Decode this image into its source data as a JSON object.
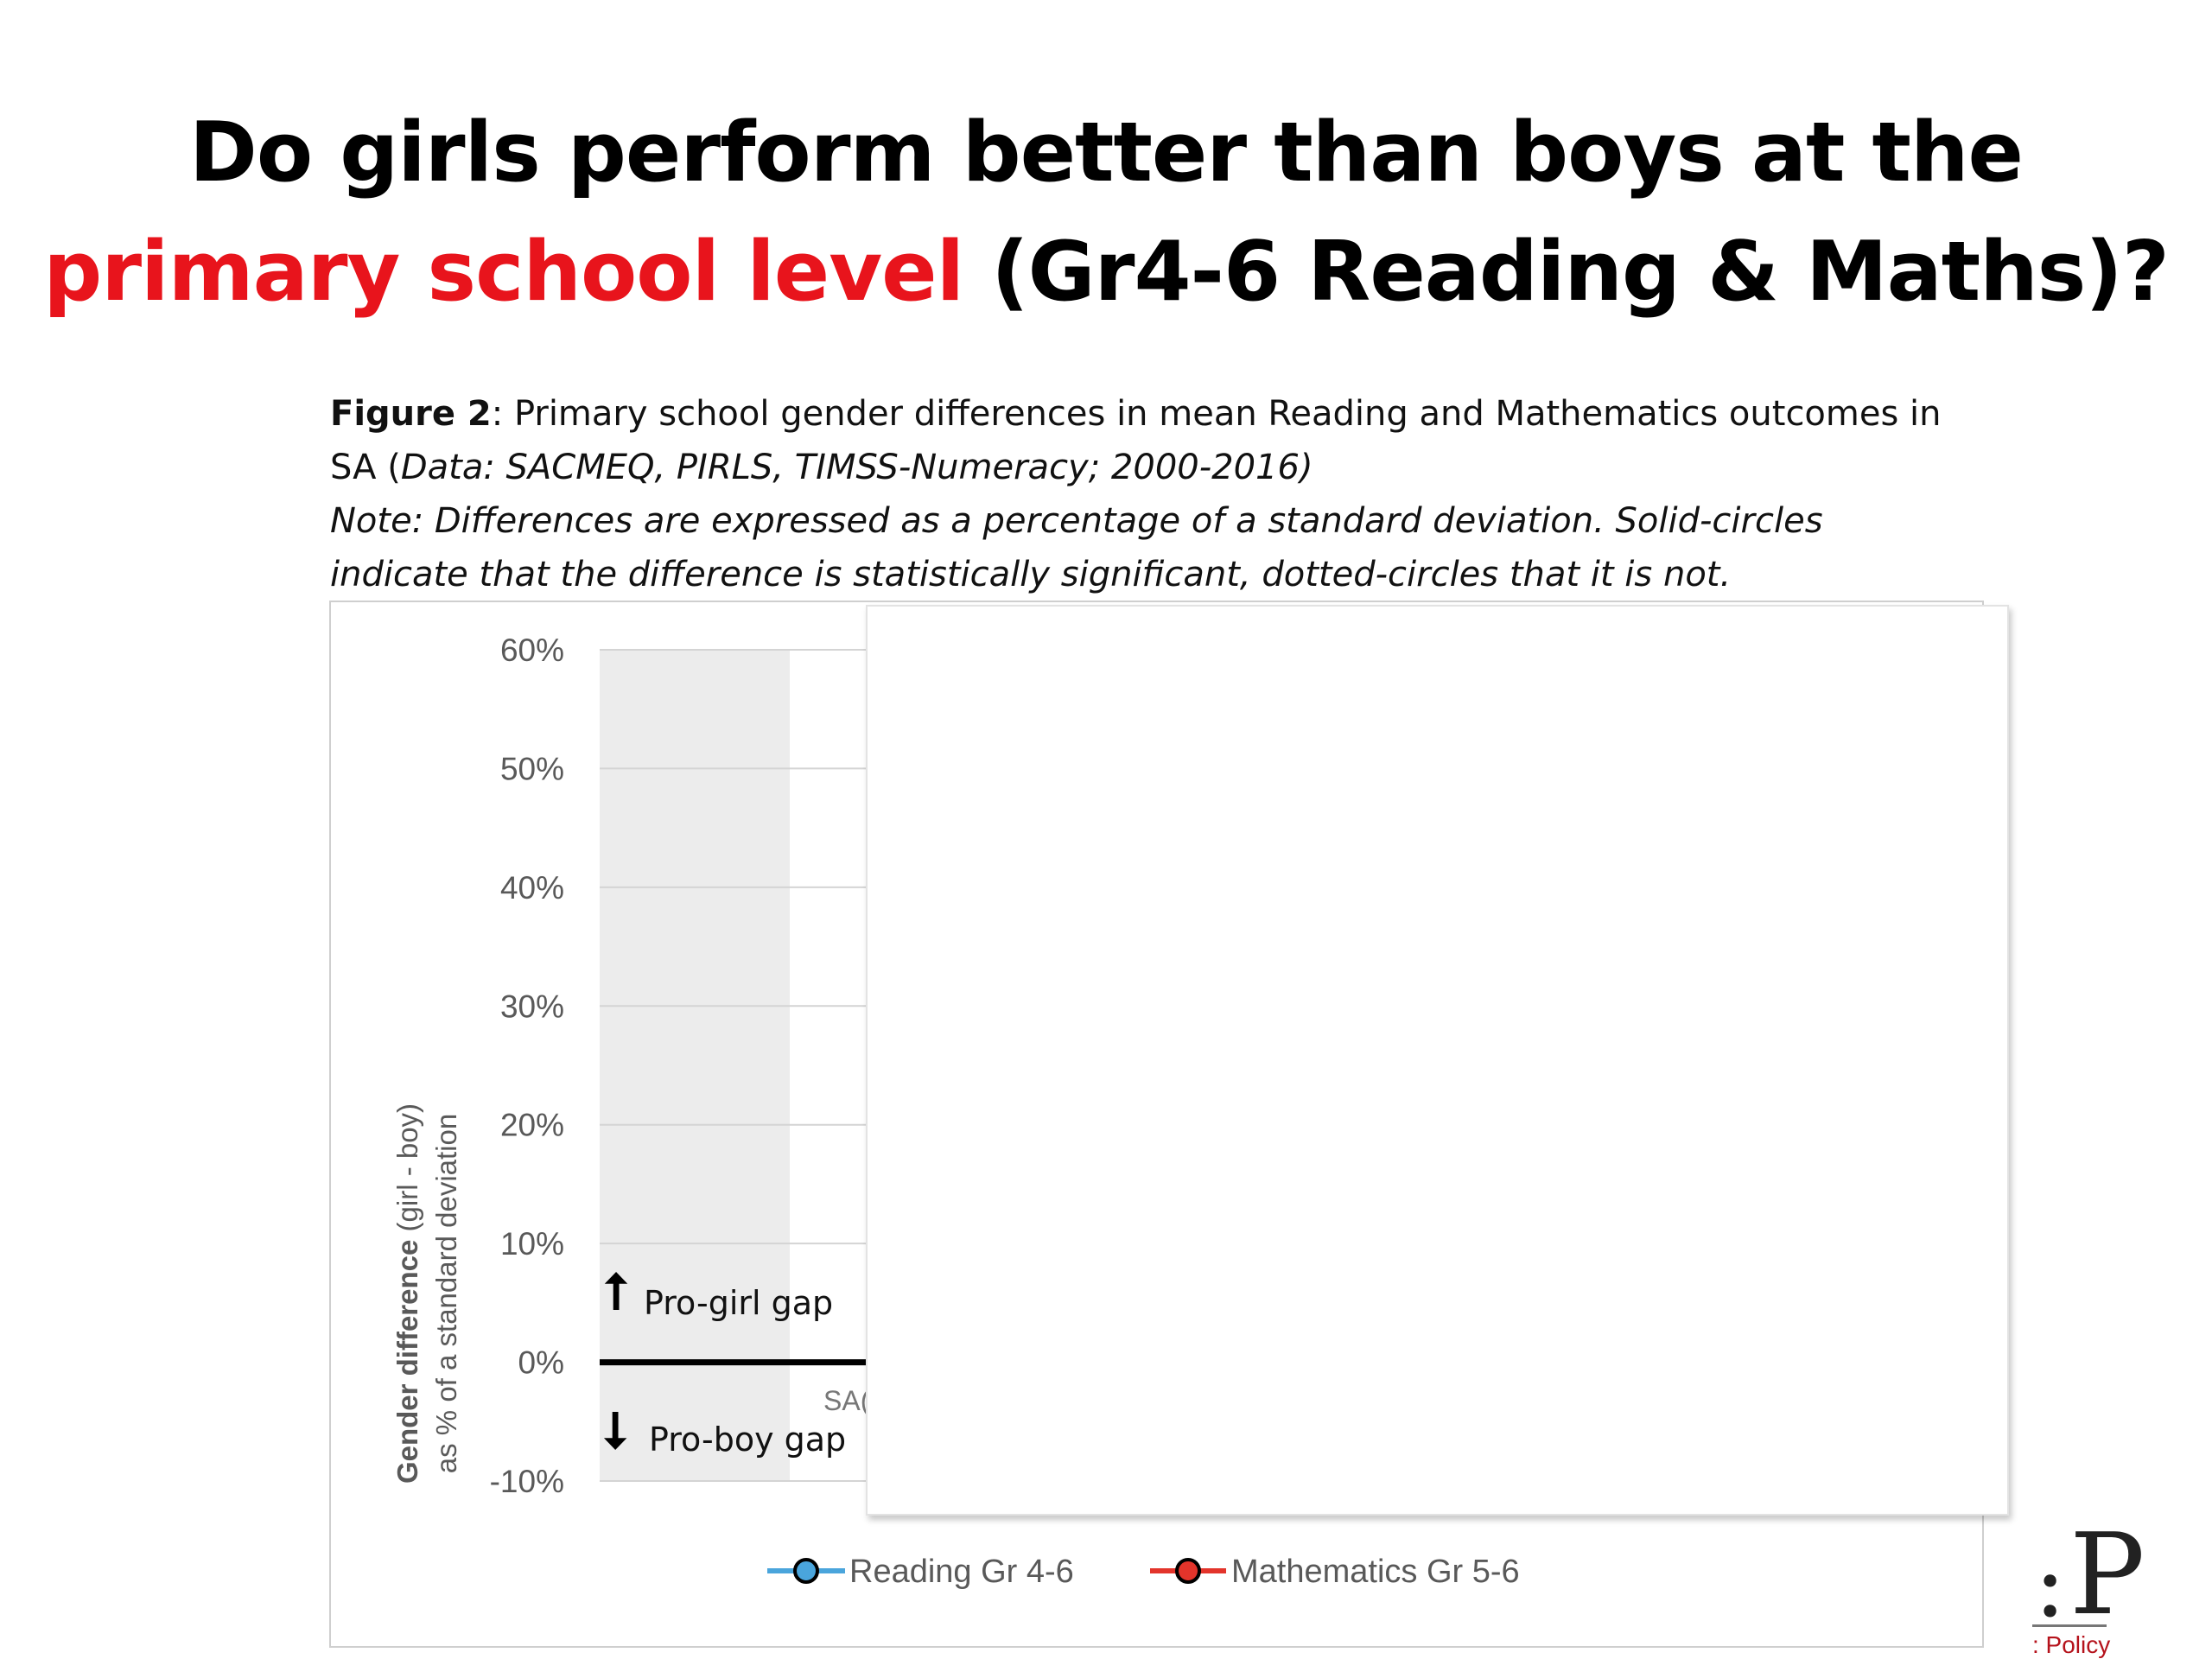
{
  "slide": {
    "title_line1": "Do girls perform better than boys at the",
    "title_accent": "primary school level",
    "title_rest": " (Gr4-6 Reading & Maths)?"
  },
  "caption": {
    "figure_label": "Figure 2",
    "text1": ": Primary school gender differences in mean Reading and Mathematics outcomes in",
    "text2_prefix": "SA (",
    "text2_italic": "Data: SACMEQ, PIRLS, TIMSS-Numeracy; 2000-2016)",
    "note_line1": "Note: Differences are expressed as a percentage of a standard deviation. Solid-circles",
    "note_line2": "indicate that the difference is statistically significant, dotted-circles that it is not."
  },
  "chart_data": {
    "type": "line",
    "title": "",
    "xlabel": "",
    "ylabel_bold": "Gender difference",
    "ylabel_rest": " (girl - boy)",
    "ylabel_line2": "as % of a standard deviation",
    "ylim": [
      -10,
      60
    ],
    "yticks": [
      "60%",
      "50%",
      "40%",
      "30%",
      "20%",
      "10%",
      "0%",
      "-10%"
    ],
    "ytick_values": [
      60,
      50,
      40,
      30,
      20,
      10,
      0,
      -10
    ],
    "grid": true,
    "x_visible_category_fragment": "SA(",
    "annotations": [
      {
        "text": "Pro-girl gap",
        "arrow": "up"
      },
      {
        "text": "Pro-boy gap",
        "arrow": "down"
      }
    ],
    "series": [
      {
        "name": "Reading Gr 4-6",
        "color": "#4aa5dc",
        "values": []
      },
      {
        "name": "Mathematics Gr 5-6",
        "color": "#e3342b",
        "values": []
      }
    ],
    "legend_position": "bottom"
  },
  "logo": {
    "letter": "P",
    "colon": ":",
    "word": ": Policy"
  }
}
